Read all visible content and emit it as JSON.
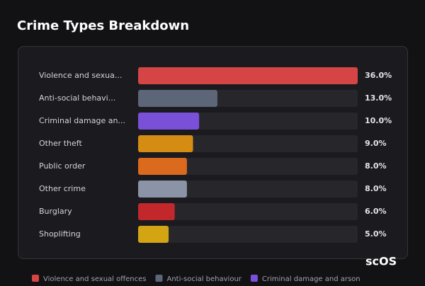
{
  "chart_data": {
    "type": "bar",
    "orientation": "horizontal",
    "title": "Crime Types Breakdown",
    "categories": [
      "Violence and sexua...",
      "Anti-social behavi...",
      "Criminal damage an...",
      "Other theft",
      "Public order",
      "Other crime",
      "Burglary",
      "Shoplifting"
    ],
    "values": [
      36,
      13,
      10,
      9,
      8,
      8,
      6,
      5
    ],
    "value_labels": [
      "36.0%",
      "13.0%",
      "10.0%",
      "9.0%",
      "8.0%",
      "8.0%",
      "6.0%",
      "5.0%"
    ],
    "colors": [
      "#d64545",
      "#5c6678",
      "#7a50d8",
      "#d48c12",
      "#dc6a1e",
      "#8a94a6",
      "#c2282b",
      "#d4a512"
    ],
    "xlim": [
      0,
      36
    ],
    "legend": [
      "Violence and sexual offences",
      "Anti-social behaviour",
      "Criminal damage and arson"
    ],
    "watermark": "scOS"
  }
}
